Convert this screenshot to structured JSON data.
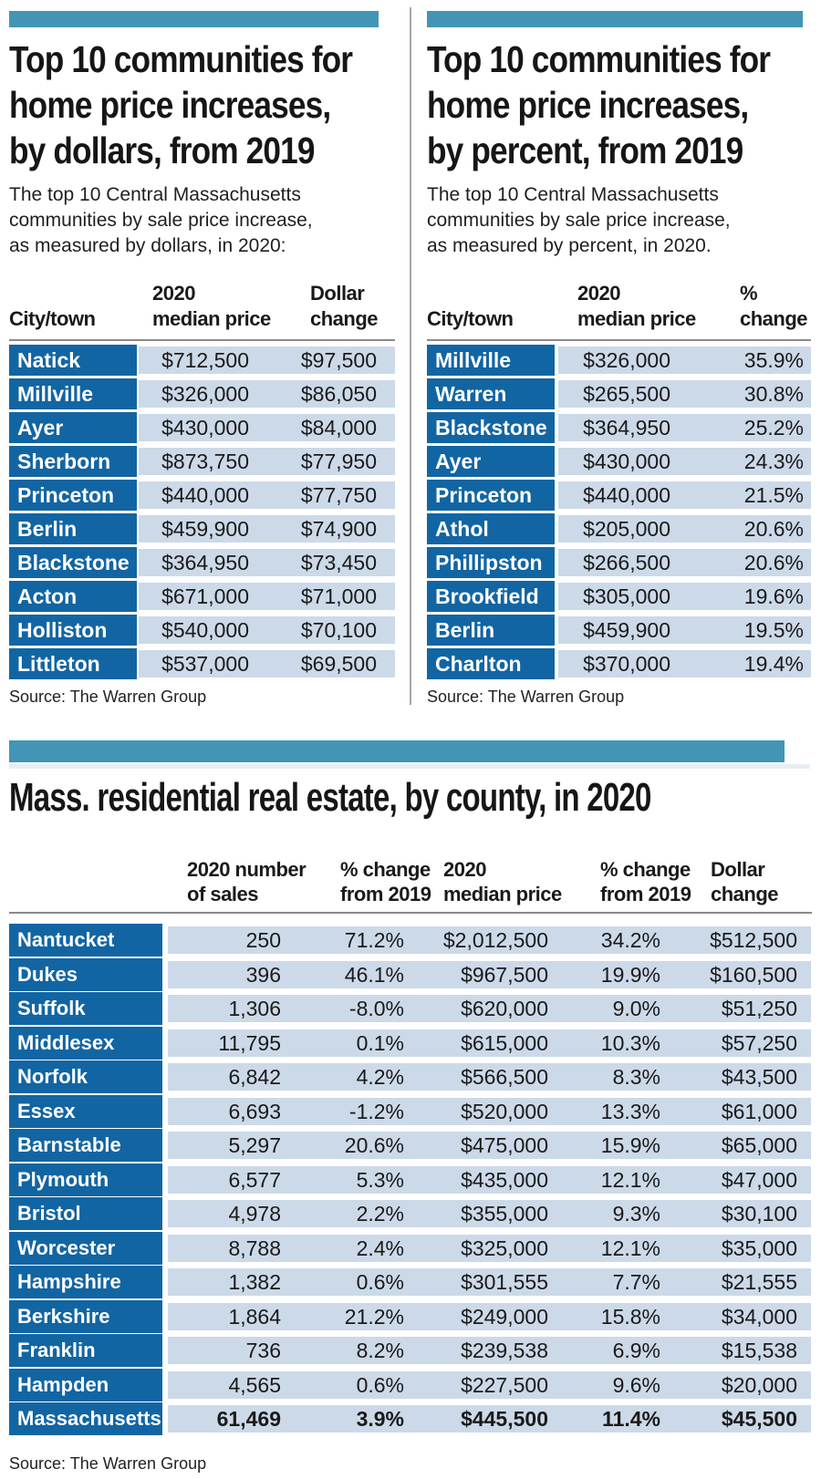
{
  "colors": {
    "accent_teal": "#4295b5",
    "row_blue": "#1265a3",
    "row_light": "#ccd9e8"
  },
  "panels": [
    {
      "title_lines": [
        "Top 10 communities for",
        "home price increases,",
        "by dollars, from 2019"
      ],
      "subtitle_lines": [
        "The top 10 Central Massachusetts",
        "communities by sale price increase,",
        "as measured by dollars, in 2020:"
      ],
      "col_city": "City/town",
      "col2_lines": [
        "2020",
        "median price"
      ],
      "col3_lines": [
        "Dollar",
        "change"
      ],
      "source": "Source: The Warren Group"
    },
    {
      "title_lines": [
        "Top 10 communities for",
        "home price increases,",
        "by percent, from 2019"
      ],
      "subtitle_lines": [
        "The top 10 Central Massachusetts",
        "communities by sale price increase,",
        "as measured by percent, in 2020."
      ],
      "col_city": "City/town",
      "col2_lines": [
        "2020",
        "median price"
      ],
      "col3_lines": [
        "%",
        "change"
      ],
      "source": "Source: The Warren Group"
    }
  ],
  "county": {
    "title": "Mass. residential real estate, by county, in 2020",
    "headers": [
      [
        "2020 number",
        "of sales"
      ],
      [
        "% change",
        "from 2019"
      ],
      [
        "2020",
        "median price"
      ],
      [
        "% change",
        "from 2019"
      ],
      [
        "Dollar",
        "change"
      ]
    ],
    "source": "Source: The Warren Group"
  },
  "chart_data": [
    {
      "type": "table",
      "title": "Top 10 communities for home price increases, by dollars, from 2019",
      "subtitle": "The top 10 Central Massachusetts communities by sale price increase, as measured by dollars, in 2020:",
      "columns": [
        "City/town",
        "2020 median price",
        "Dollar change"
      ],
      "rows": [
        {
          "cells": [
            "Natick",
            "$712,500",
            "$97,500"
          ]
        },
        {
          "cells": [
            "Millville",
            "$326,000",
            "$86,050"
          ]
        },
        {
          "cells": [
            "Ayer",
            "$430,000",
            "$84,000"
          ]
        },
        {
          "cells": [
            "Sherborn",
            "$873,750",
            "$77,950"
          ]
        },
        {
          "cells": [
            "Princeton",
            "$440,000",
            "$77,750"
          ]
        },
        {
          "cells": [
            "Berlin",
            "$459,900",
            "$74,900"
          ]
        },
        {
          "cells": [
            "Blackstone",
            "$364,950",
            "$73,450"
          ]
        },
        {
          "cells": [
            "Acton",
            "$671,000",
            "$71,000"
          ]
        },
        {
          "cells": [
            "Holliston",
            "$540,000",
            "$70,100"
          ]
        },
        {
          "cells": [
            "Littleton",
            "$537,000",
            "$69,500"
          ]
        }
      ],
      "source": "Source: The Warren Group"
    },
    {
      "type": "table",
      "title": "Top 10 communities for home price increases, by percent, from 2019",
      "subtitle": "The top 10 Central Massachusetts communities by sale price increase, as measured by percent, in 2020.",
      "columns": [
        "City/town",
        "2020 median price",
        "% change"
      ],
      "rows": [
        {
          "cells": [
            "Millville",
            "$326,000",
            "35.9%"
          ]
        },
        {
          "cells": [
            "Warren",
            "$265,500",
            "30.8%"
          ]
        },
        {
          "cells": [
            "Blackstone",
            "$364,950",
            "25.2%"
          ]
        },
        {
          "cells": [
            "Ayer",
            "$430,000",
            "24.3%"
          ]
        },
        {
          "cells": [
            "Princeton",
            "$440,000",
            "21.5%"
          ]
        },
        {
          "cells": [
            "Athol",
            "$205,000",
            "20.6%"
          ]
        },
        {
          "cells": [
            "Phillipston",
            "$266,500",
            "20.6%"
          ]
        },
        {
          "cells": [
            "Brookfield",
            "$305,000",
            "19.6%"
          ]
        },
        {
          "cells": [
            "Berlin",
            "$459,900",
            "19.5%"
          ]
        },
        {
          "cells": [
            "Charlton",
            "$370,000",
            "19.4%"
          ]
        }
      ],
      "source": "Source: The Warren Group"
    },
    {
      "type": "table",
      "title": "Mass. residential real estate, by county, in 2020",
      "columns": [
        "",
        "2020 number of sales",
        "% change from 2019",
        "2020 median price",
        "% change from 2019",
        "Dollar change"
      ],
      "rows": [
        {
          "cells": [
            "Nantucket",
            "250",
            "71.2%",
            "$2,012,500",
            "34.2%",
            "$512,500"
          ],
          "emphasis": false
        },
        {
          "cells": [
            "Dukes",
            "396",
            "46.1%",
            "$967,500",
            "19.9%",
            "$160,500"
          ],
          "emphasis": false
        },
        {
          "cells": [
            "Suffolk",
            "1,306",
            "-8.0%",
            "$620,000",
            "9.0%",
            "$51,250"
          ],
          "emphasis": false
        },
        {
          "cells": [
            "Middlesex",
            "11,795",
            "0.1%",
            "$615,000",
            "10.3%",
            "$57,250"
          ],
          "emphasis": false
        },
        {
          "cells": [
            "Norfolk",
            "6,842",
            "4.2%",
            "$566,500",
            "8.3%",
            "$43,500"
          ],
          "emphasis": false
        },
        {
          "cells": [
            "Essex",
            "6,693",
            "-1.2%",
            "$520,000",
            "13.3%",
            "$61,000"
          ],
          "emphasis": false
        },
        {
          "cells": [
            "Barnstable",
            "5,297",
            "20.6%",
            "$475,000",
            "15.9%",
            "$65,000"
          ],
          "emphasis": false
        },
        {
          "cells": [
            "Plymouth",
            "6,577",
            "5.3%",
            "$435,000",
            "12.1%",
            "$47,000"
          ],
          "emphasis": false
        },
        {
          "cells": [
            "Bristol",
            "4,978",
            "2.2%",
            "$355,000",
            "9.3%",
            "$30,100"
          ],
          "emphasis": false
        },
        {
          "cells": [
            "Worcester",
            "8,788",
            "2.4%",
            "$325,000",
            "12.1%",
            "$35,000"
          ],
          "emphasis": false
        },
        {
          "cells": [
            "Hampshire",
            "1,382",
            "0.6%",
            "$301,555",
            "7.7%",
            "$21,555"
          ],
          "emphasis": false
        },
        {
          "cells": [
            "Berkshire",
            "1,864",
            "21.2%",
            "$249,000",
            "15.8%",
            "$34,000"
          ],
          "emphasis": false
        },
        {
          "cells": [
            "Franklin",
            "736",
            "8.2%",
            "$239,538",
            "6.9%",
            "$15,538"
          ],
          "emphasis": false
        },
        {
          "cells": [
            "Hampden",
            "4,565",
            "0.6%",
            "$227,500",
            "9.6%",
            "$20,000"
          ],
          "emphasis": false
        },
        {
          "cells": [
            "Massachusetts",
            "61,469",
            "3.9%",
            "$445,500",
            "11.4%",
            "$45,500"
          ],
          "emphasis": true
        }
      ],
      "source": "Source: The Warren Group"
    }
  ]
}
